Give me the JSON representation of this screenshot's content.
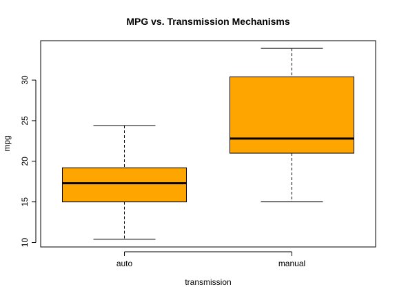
{
  "chart_data": {
    "type": "boxplot",
    "title": "MPG vs. Transmission Mechanisms",
    "xlabel": "transmission",
    "ylabel": "mpg",
    "categories": [
      "auto",
      "manual"
    ],
    "boxes": [
      {
        "category": "auto",
        "whisker_low": 10.4,
        "q1": 15.0,
        "median": 17.3,
        "q3": 19.2,
        "whisker_high": 24.4
      },
      {
        "category": "manual",
        "whisker_low": 15.0,
        "q1": 21.0,
        "median": 22.8,
        "q3": 30.4,
        "whisker_high": 33.9
      }
    ],
    "yticks": [
      10,
      15,
      20,
      25,
      30
    ],
    "ylim": [
      9.45,
      34.85
    ],
    "box_color": "#FFA500",
    "grid": false
  }
}
